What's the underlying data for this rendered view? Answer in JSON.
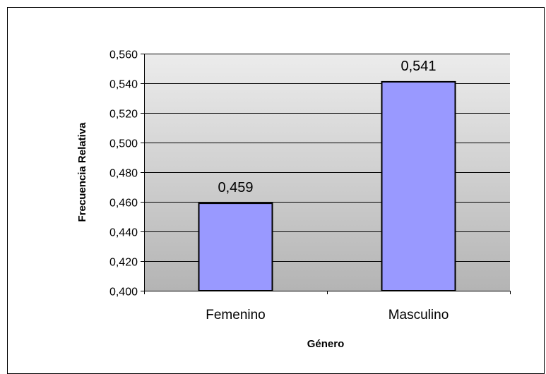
{
  "chart_data": {
    "type": "bar",
    "categories": [
      "Femenino",
      "Masculino"
    ],
    "values": [
      0.459,
      0.541
    ],
    "data_labels": [
      "0,459",
      "0,541"
    ],
    "title": "",
    "xlabel": "Género",
    "ylabel": "Frecuencia Relativa",
    "ylim": [
      0.4,
      0.56
    ],
    "yticks": [
      0.4,
      0.42,
      0.44,
      0.46,
      0.48,
      0.5,
      0.52,
      0.54,
      0.56
    ],
    "ytick_labels": [
      "0,400",
      "0,420",
      "0,440",
      "0,460",
      "0,480",
      "0,500",
      "0,520",
      "0,540",
      "0,560"
    ],
    "grid": true,
    "legend": "none",
    "colors": {
      "bar_fill": "#9999ff",
      "bar_stroke": "#000000",
      "plot_bg_top": "#ececec",
      "plot_bg_bottom": "#b4b4b4",
      "gridline": "#000000"
    }
  }
}
